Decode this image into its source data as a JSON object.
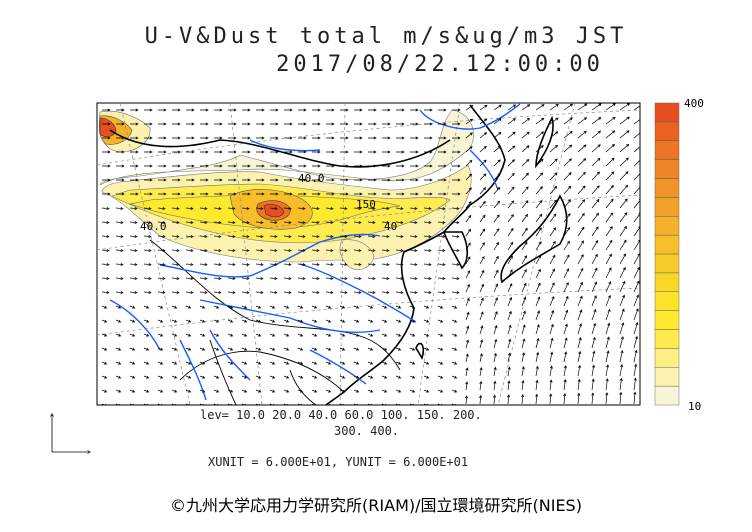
{
  "header": {
    "title": "U-V&Dust total m/s&ug/m3 JST",
    "datetime": "2017/08/22.12:00:00"
  },
  "colorbar": {
    "max_label": "400",
    "min_label": "10",
    "colors": [
      "#f8f5d6",
      "#fbf2b0",
      "#fcee80",
      "#fdeb4f",
      "#fde92d",
      "#fbe32b",
      "#f9d72a",
      "#f7cb2a",
      "#f6bf2a",
      "#f4b129",
      "#f2a228",
      "#f09427",
      "#ee8526",
      "#ec7424",
      "#ea6222",
      "#e84f20"
    ]
  },
  "contours": {
    "labels": [
      "40.0",
      "40.0",
      "150",
      "40"
    ]
  },
  "legend": {
    "lev_line1": "lev= 10.0 20.0 40.0 60.0 100. 150. 200.",
    "lev_line2": "300. 400.",
    "units": "XUNIT = 6.000E+01, YUNIT = 6.000E+01"
  },
  "credit": "©九州大学応用力学研究所(RIAM)/国立環境研究所(NIES)",
  "colors": {
    "coast": "#000000",
    "river": "#1a5cff",
    "grid": "#888888",
    "dust_low": "#f8f5d6",
    "dust_high": "#e84f20"
  }
}
